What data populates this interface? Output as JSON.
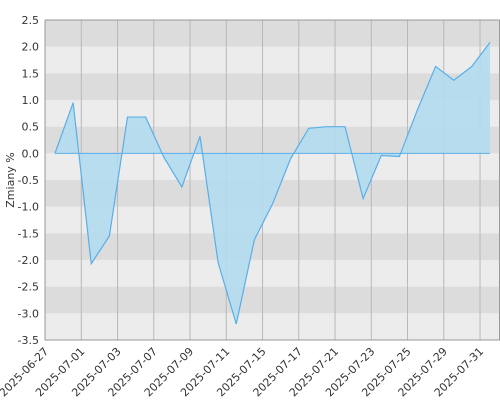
{
  "chart_data": {
    "type": "area",
    "y_label": "Zmiany %",
    "categories": [
      "2025-06-27",
      null,
      "2025-07-01",
      null,
      "2025-07-03",
      null,
      "2025-07-07",
      null,
      "2025-07-09",
      null,
      "2025-07-11",
      null,
      "2025-07-15",
      null,
      "2025-07-17",
      null,
      "2025-07-21",
      null,
      "2025-07-23",
      null,
      "2025-07-25",
      null,
      "2025-07-29",
      null,
      "2025-07-31"
    ],
    "values": [
      0,
      0.95,
      -2.07,
      -1.55,
      0.68,
      0.68,
      -0.07,
      -0.63,
      0.32,
      -2.05,
      -3.2,
      -1.62,
      -0.95,
      -0.1,
      0.47,
      0.5,
      0.5,
      -0.85,
      -0.04,
      -0.06,
      0.82,
      1.63,
      1.37,
      1.63,
      2.08
    ],
    "color": "#5aaee8",
    "fill": "#b3dcef",
    "ylim": [
      -3.5,
      2.5
    ],
    "yticks": [
      2.5,
      {
        "value": 2,
        "label": "2.0"
      },
      1.5,
      {
        "value": 1,
        "label": "1.0"
      },
      0.5,
      {
        "value": 0,
        "label": "0.0"
      },
      -0.5,
      {
        "value": -1,
        "label": "-1.0"
      },
      -1.5,
      {
        "value": -2,
        "label": "-2.0"
      },
      -2.5,
      {
        "value": -3,
        "label": "-3.0"
      },
      -3.5
    ],
    "grid": true
  }
}
